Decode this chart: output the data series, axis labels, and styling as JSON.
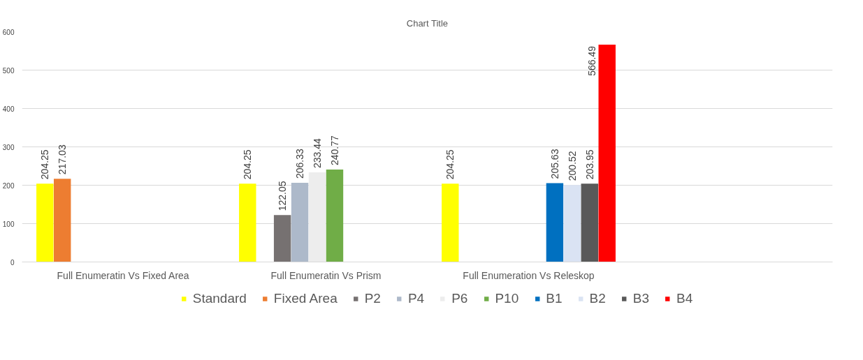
{
  "chart_data": {
    "type": "bar",
    "title": "Chart Title",
    "categories": [
      "Full Enumeratin Vs Fixed Area",
      "Full Enumeratin Vs Prism",
      "Full Enumeration Vs Releskop",
      null
    ],
    "series": [
      {
        "name": "Standard",
        "color": "#ffff00",
        "values": [
          204.25,
          204.25,
          204.25,
          null
        ]
      },
      {
        "name": "Fixed Area",
        "color": "#ed7d31",
        "values": [
          217.03,
          null,
          null,
          null
        ]
      },
      {
        "name": "P2",
        "color": "#767171",
        "values": [
          null,
          122.05,
          null,
          null
        ]
      },
      {
        "name": "P4",
        "color": "#adb9ca",
        "values": [
          null,
          206.33,
          null,
          null
        ]
      },
      {
        "name": "P6",
        "color": "#ededed",
        "values": [
          null,
          233.44,
          null,
          null
        ]
      },
      {
        "name": "P10",
        "color": "#70ad47",
        "values": [
          null,
          240.77,
          null,
          null
        ]
      },
      {
        "name": "B1",
        "color": "#0070c0",
        "values": [
          null,
          null,
          205.63,
          null
        ]
      },
      {
        "name": "B2",
        "color": "#dae3f3",
        "values": [
          null,
          null,
          200.52,
          null
        ]
      },
      {
        "name": "B3",
        "color": "#595959",
        "values": [
          null,
          null,
          203.95,
          null
        ]
      },
      {
        "name": "B4",
        "color": "#ff0000",
        "values": [
          null,
          null,
          566.49,
          null
        ]
      }
    ],
    "ylim": [
      0,
      600
    ],
    "yticks": [
      0,
      100,
      200,
      300,
      400,
      500,
      600
    ],
    "grid": "y",
    "legend": "bottom",
    "data_labels": true
  }
}
